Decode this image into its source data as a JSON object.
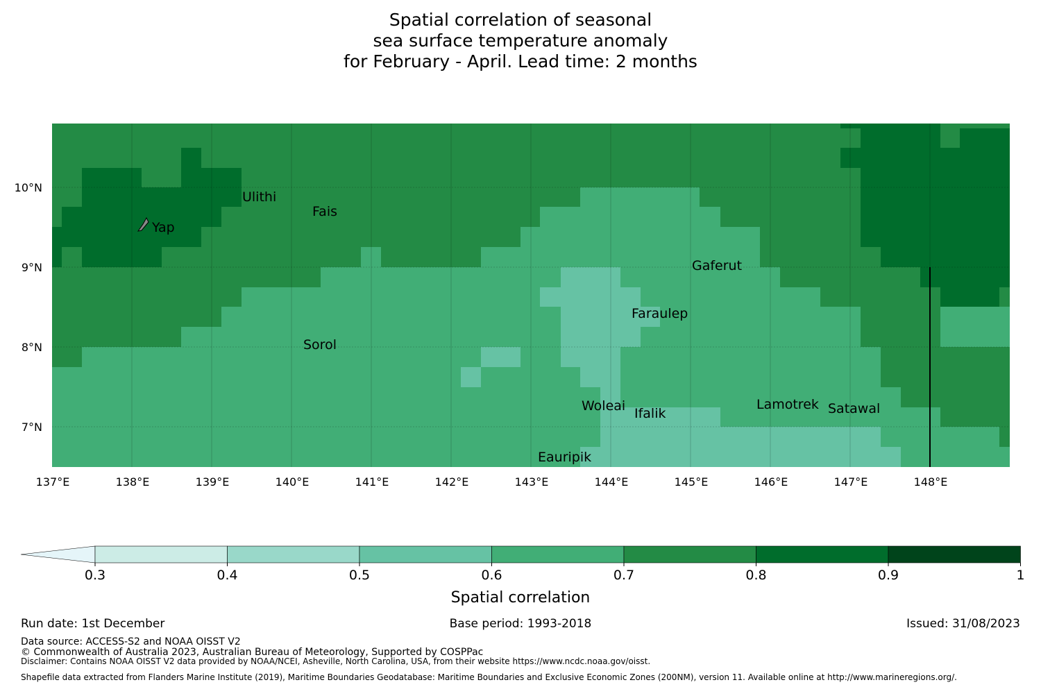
{
  "title": {
    "line1": "Spatial correlation of seasonal",
    "line2": "sea surface temperature anomaly",
    "line3": "for February - April. Lead time: 2 months"
  },
  "map": {
    "lat_labels": [
      "10°N",
      "9°N",
      "8°N",
      "7°N"
    ],
    "lon_labels": [
      "137°E",
      "138°E",
      "139°E",
      "140°E",
      "141°E",
      "142°E",
      "143°E",
      "144°E",
      "145°E",
      "146°E",
      "147°E",
      "148°E"
    ],
    "places": [
      {
        "name": "Yap"
      },
      {
        "name": "Ulithi"
      },
      {
        "name": "Fais"
      },
      {
        "name": "Gaferut"
      },
      {
        "name": "Faraulep"
      },
      {
        "name": "Sorol"
      },
      {
        "name": "Woleai"
      },
      {
        "name": "Ifalik"
      },
      {
        "name": "Lamotrek"
      },
      {
        "name": "Satawal"
      },
      {
        "name": "Eauripik"
      }
    ]
  },
  "colorbar": {
    "ticks": [
      "0.3",
      "0.4",
      "0.5",
      "0.6",
      "0.7",
      "0.8",
      "0.9",
      "1"
    ],
    "colors": [
      "#e5f5f9",
      "#ccece6",
      "#99d8c9",
      "#66c2a4",
      "#41ae76",
      "#238b45",
      "#006d2c",
      "#00441b"
    ],
    "label": "Spatial correlation"
  },
  "footer": {
    "run_date": "Run date: 1st December",
    "base_period": "Base period: 1993-2018",
    "issued": "Issued: 31/08/2023",
    "data_source": "Data source: ACCESS-S2 and NOAA OISST V2",
    "copyright": "© Commonwealth of Australia 2023, Australian Bureau of Meteorology, Supported by COSPPac",
    "disclaimer": "Disclaimer: Contains NOAA OISST V2 data provided by NOAA/NCEI, Asheville, North Carolina, USA, from their website https://www.ncdc.noaa.gov/oisst.",
    "shapefile": "Shapefile data extracted from Flanders Marine Institute (2019), Maritime Boundaries Geodatabase: Maritime Boundaries and Exclusive Economic Zones (200NM), version 11. Available online at http://www.marineregions.org/."
  }
}
